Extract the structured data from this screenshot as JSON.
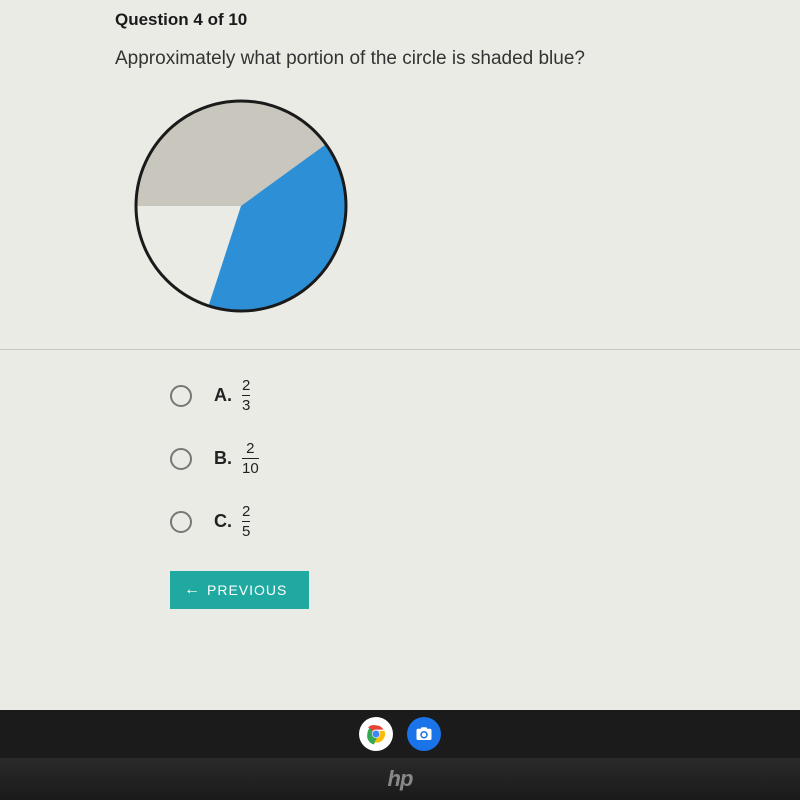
{
  "question": {
    "counter": "Question 4 of 10",
    "text": "Approximately what portion of the circle is shaded blue?"
  },
  "pie_chart": {
    "type": "pie",
    "radius": 105,
    "stroke_color": "#1a1a1a",
    "stroke_width": 3,
    "slices": [
      {
        "fraction": 0.6,
        "start_angle_deg": 180,
        "color": "#c9c6bd"
      },
      {
        "fraction": 0.4,
        "start_angle_deg": 36,
        "color": "#2d8fd6"
      }
    ],
    "background_color": "#ebebe6"
  },
  "options": [
    {
      "letter": "A.",
      "numerator": "2",
      "denominator": "3"
    },
    {
      "letter": "B.",
      "numerator": "2",
      "denominator": "10"
    },
    {
      "letter": "C.",
      "numerator": "2",
      "denominator": "5"
    }
  ],
  "buttons": {
    "previous": "PREVIOUS"
  },
  "logo": "hp"
}
